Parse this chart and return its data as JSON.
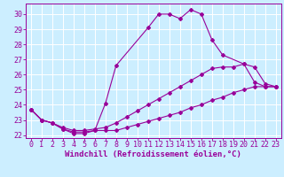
{
  "title": "",
  "xlabel": "Windchill (Refroidissement éolien,°C)",
  "background_color": "#cceeff",
  "grid_color": "#ffffff",
  "line_color": "#990099",
  "xlim": [
    -0.5,
    23.5
  ],
  "ylim": [
    21.8,
    30.7
  ],
  "yticks": [
    22,
    23,
    24,
    25,
    26,
    27,
    28,
    29,
    30
  ],
  "xticks": [
    0,
    1,
    2,
    3,
    4,
    5,
    6,
    7,
    8,
    9,
    10,
    11,
    12,
    13,
    14,
    15,
    16,
    17,
    18,
    19,
    20,
    21,
    22,
    23
  ],
  "series1_x": [
    0,
    1,
    2,
    3,
    4,
    5,
    6,
    7,
    8,
    11,
    12,
    13,
    14,
    15,
    16,
    17,
    18,
    20,
    21,
    22,
    23
  ],
  "series1_y": [
    23.7,
    23.0,
    22.8,
    22.4,
    22.1,
    22.1,
    22.3,
    24.1,
    26.6,
    29.1,
    30.0,
    30.0,
    29.7,
    30.3,
    30.0,
    28.3,
    27.3,
    26.7,
    25.5,
    25.2,
    25.2
  ],
  "series2_x": [
    0,
    1,
    2,
    3,
    4,
    5,
    6,
    7,
    8,
    9,
    10,
    11,
    12,
    13,
    14,
    15,
    16,
    17,
    18,
    19,
    20,
    21,
    22,
    23
  ],
  "series2_y": [
    23.7,
    23.0,
    22.8,
    22.4,
    22.2,
    22.2,
    22.3,
    22.3,
    22.3,
    22.5,
    22.7,
    22.9,
    23.1,
    23.3,
    23.5,
    23.8,
    24.0,
    24.3,
    24.5,
    24.8,
    25.0,
    25.2,
    25.2,
    25.2
  ],
  "series3_x": [
    0,
    1,
    2,
    3,
    4,
    5,
    6,
    7,
    8,
    9,
    10,
    11,
    12,
    13,
    14,
    15,
    16,
    17,
    18,
    19,
    20,
    21,
    22,
    23
  ],
  "series3_y": [
    23.7,
    23.0,
    22.8,
    22.5,
    22.3,
    22.3,
    22.4,
    22.5,
    22.8,
    23.2,
    23.6,
    24.0,
    24.4,
    24.8,
    25.2,
    25.6,
    26.0,
    26.4,
    26.5,
    26.5,
    26.7,
    26.5,
    25.4,
    25.2
  ],
  "tick_fontsize": 6.0,
  "xlabel_fontsize": 6.5,
  "marker_size": 2.0,
  "line_width": 0.8
}
